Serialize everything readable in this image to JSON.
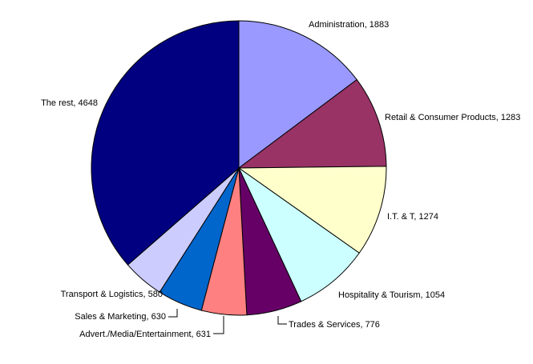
{
  "chart_data": {
    "type": "pie",
    "title": "",
    "label_separator": ", ",
    "start_angle_deg": 0,
    "direction": "clockwise",
    "slices": [
      {
        "label": "Administration",
        "value": 1883,
        "color": "#9999FF"
      },
      {
        "label": "Retail & Consumer Products",
        "value": 1283,
        "color": "#993366"
      },
      {
        "label": "I.T. & T",
        "value": 1274,
        "color": "#FFFFCC"
      },
      {
        "label": "Hospitality & Tourism",
        "value": 1054,
        "color": "#CCFFFF"
      },
      {
        "label": "Trades & Services",
        "value": 776,
        "color": "#660066"
      },
      {
        "label": "Advert./Media/Entertainment",
        "value": 631,
        "color": "#FF8080"
      },
      {
        "label": "Sales & Marketing",
        "value": 630,
        "color": "#0066CC"
      },
      {
        "label": "Transport & Logistics",
        "value": 580,
        "color": "#CCCCFF"
      },
      {
        "label": "The rest",
        "value": 4648,
        "color": "#000080"
      }
    ]
  }
}
